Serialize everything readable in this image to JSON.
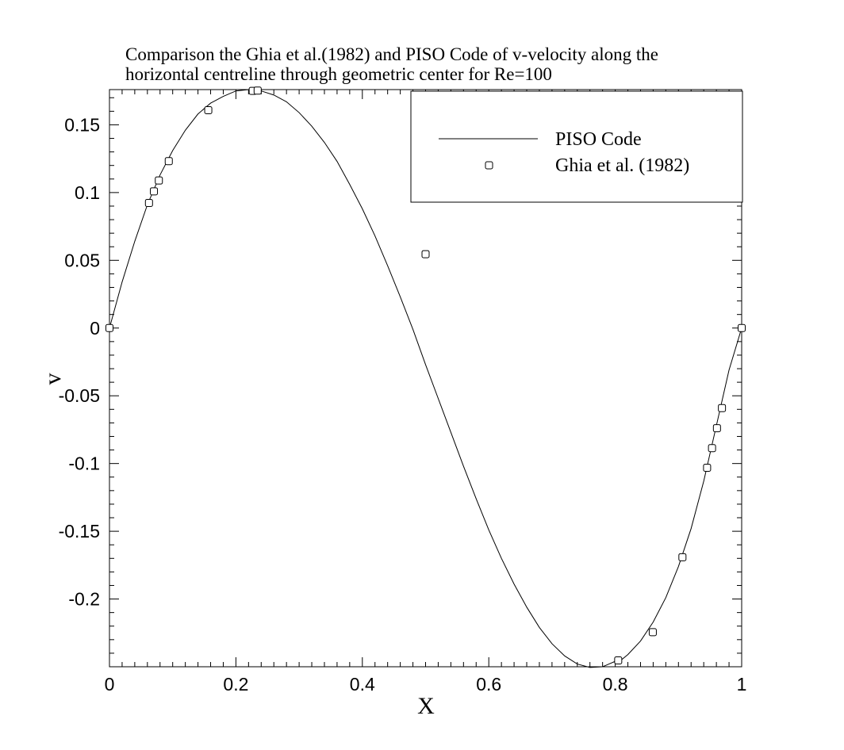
{
  "chart_data": {
    "type": "line",
    "title_lines": [
      "Comparison the Ghia et al.(1982) and PISO Code of v-velocity along the",
      "horizontal centreline through geometric center for Re=100"
    ],
    "xlabel": "X",
    "ylabel": "v",
    "xlim": [
      0,
      1
    ],
    "ylim": [
      -0.25,
      0.176
    ],
    "x_ticks": [
      "0",
      "0.2",
      "0.4",
      "0.6",
      "0.8",
      "1"
    ],
    "x_tick_values": [
      0,
      0.2,
      0.4,
      0.6,
      0.8,
      1
    ],
    "y_ticks": [
      "0.15",
      "0.1",
      "0.05",
      "0",
      "-0.05",
      "-0.1",
      "-0.15",
      "-0.2"
    ],
    "y_tick_values": [
      0.15,
      0.1,
      0.05,
      0,
      -0.05,
      -0.1,
      -0.15,
      -0.2
    ],
    "grid": false,
    "legend_position": "top-right",
    "series": [
      {
        "name": "PISO Code",
        "style": "line",
        "x": [
          0,
          0.02,
          0.04,
          0.06,
          0.08,
          0.1,
          0.12,
          0.14,
          0.16,
          0.18,
          0.2,
          0.22,
          0.24,
          0.26,
          0.28,
          0.3,
          0.32,
          0.34,
          0.36,
          0.38,
          0.4,
          0.42,
          0.44,
          0.46,
          0.48,
          0.5,
          0.52,
          0.54,
          0.56,
          0.58,
          0.6,
          0.62,
          0.64,
          0.66,
          0.68,
          0.7,
          0.72,
          0.74,
          0.76,
          0.78,
          0.8,
          0.81,
          0.82,
          0.84,
          0.86,
          0.88,
          0.9,
          0.92,
          0.94,
          0.96,
          0.98,
          1.0
        ],
        "y": [
          0,
          0.034,
          0.064,
          0.091,
          0.113,
          0.131,
          0.146,
          0.158,
          0.166,
          0.171,
          0.175,
          0.176,
          0.175,
          0.172,
          0.167,
          0.159,
          0.149,
          0.137,
          0.123,
          0.106,
          0.088,
          0.068,
          0.046,
          0.023,
          -0.001,
          -0.027,
          -0.052,
          -0.077,
          -0.102,
          -0.126,
          -0.149,
          -0.17,
          -0.189,
          -0.206,
          -0.221,
          -0.233,
          -0.242,
          -0.248,
          -0.2505,
          -0.25,
          -0.246,
          -0.2448,
          -0.241,
          -0.231,
          -0.217,
          -0.199,
          -0.176,
          -0.148,
          -0.113,
          -0.072,
          -0.031,
          0
        ]
      },
      {
        "name": "Ghia et al. (1982)",
        "style": "markers",
        "marker": "circle",
        "x": [
          0,
          0.0625,
          0.0703,
          0.0781,
          0.0938,
          0.1563,
          0.2266,
          0.2344,
          0.5,
          0.8047,
          0.8594,
          0.9063,
          0.9453,
          0.9531,
          0.9609,
          0.9688,
          1.0
        ],
        "y": [
          0,
          0.09233,
          0.10091,
          0.1089,
          0.12317,
          0.16077,
          0.17507,
          0.17527,
          0.05454,
          -0.24533,
          -0.22445,
          -0.16914,
          -0.10313,
          -0.08864,
          -0.07391,
          -0.05906,
          0
        ]
      }
    ]
  }
}
